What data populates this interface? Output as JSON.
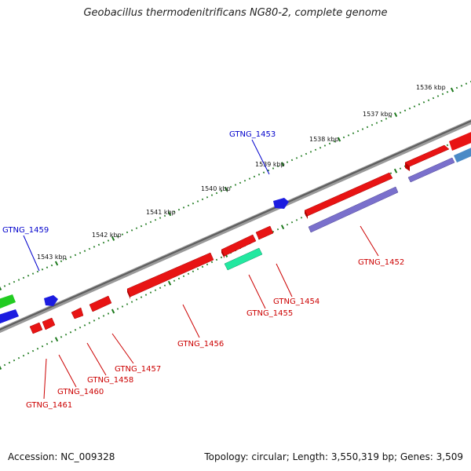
{
  "title": "Geobacillus thermodenitrificans NG80-2, complete genome",
  "footer": {
    "accession": "Accession: NC_009328",
    "summary": "Topology: circular; Length: 3,550,319 bp; Genes: 3,509"
  },
  "colors": {
    "backbone": "#6d6d6d",
    "ruler_dot": "#1e7a1e",
    "red_gene": "#e81414",
    "green_gene": "#22cc22",
    "blue_gene": "#1c1ce0",
    "teal_gene": "#22e8a0",
    "lavender_gene": "#7a70cc",
    "steel_gene": "#4a8ac6",
    "label_blue": "#0000cc",
    "label_red": "#cc0000"
  },
  "kbp_ticks": [
    "1536 kbp",
    "1537 kbp",
    "1538 kbp",
    "1539 kbp",
    "1540 kbp",
    "1541 kbp",
    "1542 kbp",
    "1543 kbp"
  ],
  "gene_labels": {
    "g1453": "GTNG_1453",
    "g1459": "GTNG_1459",
    "g1452": "GTNG_1452",
    "g1454": "GTNG_1454",
    "g1455": "GTNG_1455",
    "g1456": "GTNG_1456",
    "g1457": "GTNG_1457",
    "g1458": "GTNG_1458",
    "g1460": "GTNG_1460",
    "g1461": "GTNG_1461"
  }
}
